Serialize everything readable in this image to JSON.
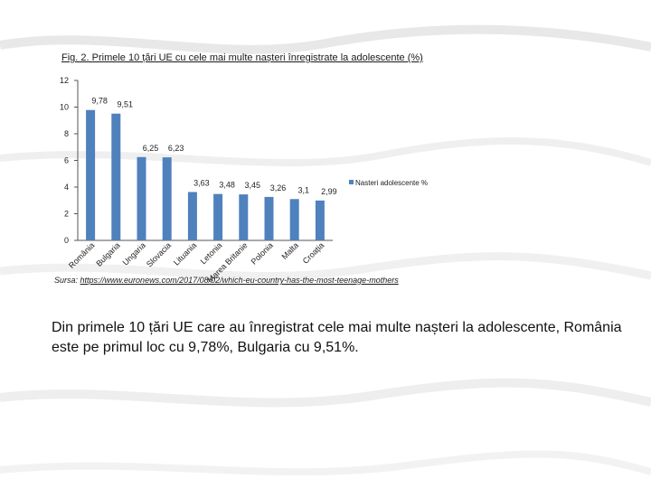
{
  "chart_data": {
    "type": "bar",
    "title": "Fig. 2. Primele 10 țări UE cu cele mai multe nașteri înregistrate la adolescente (%)",
    "categories": [
      "România",
      "Bulgaria",
      "Ungaria",
      "Slovacia",
      "Lituania",
      "Letonia",
      "Marea Britanie",
      "Polonia",
      "Malta",
      "Croația"
    ],
    "series": [
      {
        "name": "Nasteri adolescente %",
        "values": [
          9.78,
          9.51,
          6.25,
          6.23,
          3.63,
          3.48,
          3.45,
          3.26,
          3.1,
          2.99
        ]
      }
    ],
    "data_labels": [
      "9,78",
      "9,51",
      "6,25",
      "6,23",
      "3,63",
      "3,48",
      "3,45",
      "3,26",
      "3,1",
      "2,99"
    ],
    "y_ticks": [
      0,
      2,
      4,
      6,
      8,
      10,
      12
    ],
    "ylim": [
      0,
      12
    ],
    "bar_color": "#4f81bd",
    "grid": false,
    "legend_position": "right"
  },
  "source": {
    "label": "Sursa:",
    "url": "https://www.euronews.com/2017/08/02/which-eu-country-has-the-most-teenage-mothers"
  },
  "body_text": "Din primele 10 țări UE care au înregistrat cele mai multe nașteri la adolescente, România este pe primul loc cu 9,78%, Bulgaria cu 9,51%."
}
